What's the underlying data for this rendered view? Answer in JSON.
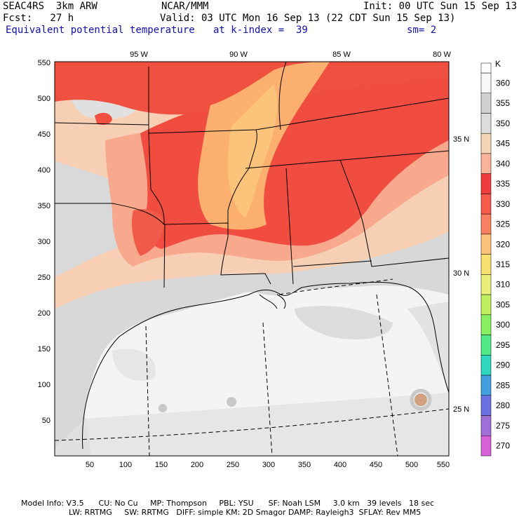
{
  "header": {
    "model": "SEAC4RS  3km ARW",
    "org": "NCAR/MMM",
    "init": "Init: 00 UTC Sun 15 Sep 13",
    "fcst": "Fcst:   27 h",
    "valid": "Valid: 03 UTC Mon 16 Sep 13 (22 CDT Sun 15 Sep 13)",
    "field": "Equivalent potential temperature",
    "level": "at k-index =  39",
    "smooth": "sm= 2"
  },
  "axes": {
    "x_ticks": [
      "50",
      "100",
      "150",
      "200",
      "250",
      "300",
      "350",
      "400",
      "450",
      "500",
      "550"
    ],
    "y_ticks": [
      "550",
      "500",
      "450",
      "400",
      "350",
      "300",
      "250",
      "200",
      "150",
      "100",
      "50"
    ],
    "lon_labels": [
      "95 W",
      "90 W",
      "85 W",
      "80 W"
    ],
    "lat_labels": [
      "35 N",
      "30 N",
      "25 N"
    ]
  },
  "colorbar": {
    "unit": "K",
    "levels": [
      {
        "label": "360",
        "color": "#f8f8f8"
      },
      {
        "label": "355",
        "color": "#d0d0d0"
      },
      {
        "label": "350",
        "color": "#dcdcdc"
      },
      {
        "label": "345",
        "color": "#f5d5b8"
      },
      {
        "label": "340",
        "color": "#f8b49a"
      },
      {
        "label": "335",
        "color": "#f03c3c"
      },
      {
        "label": "330",
        "color": "#f55a4a"
      },
      {
        "label": "325",
        "color": "#f88060"
      },
      {
        "label": "320",
        "color": "#fcc27a"
      },
      {
        "label": "315",
        "color": "#f8e070"
      },
      {
        "label": "310",
        "color": "#e8f07a"
      },
      {
        "label": "305",
        "color": "#c0f060"
      },
      {
        "label": "300",
        "color": "#88f060"
      },
      {
        "label": "295",
        "color": "#50e888"
      },
      {
        "label": "290",
        "color": "#30d8c0"
      },
      {
        "label": "285",
        "color": "#40a0e0"
      },
      {
        "label": "280",
        "color": "#6a70e0"
      },
      {
        "label": "275",
        "color": "#a070d8"
      },
      {
        "label": "270",
        "color": "#d860d8"
      }
    ]
  },
  "footer": {
    "line1": "Model Info: V3.5      CU: No Cu     MP: Thompson     PBL: YSU      SF: Noah LSM     3.0 km   39 levels   18 sec",
    "line2": "LW: RRTMG     SW: RRTMG   DIFF: simple KM: 2D Smagor DAMP: Rayleigh3  SFLAY: Rev MM5"
  }
}
